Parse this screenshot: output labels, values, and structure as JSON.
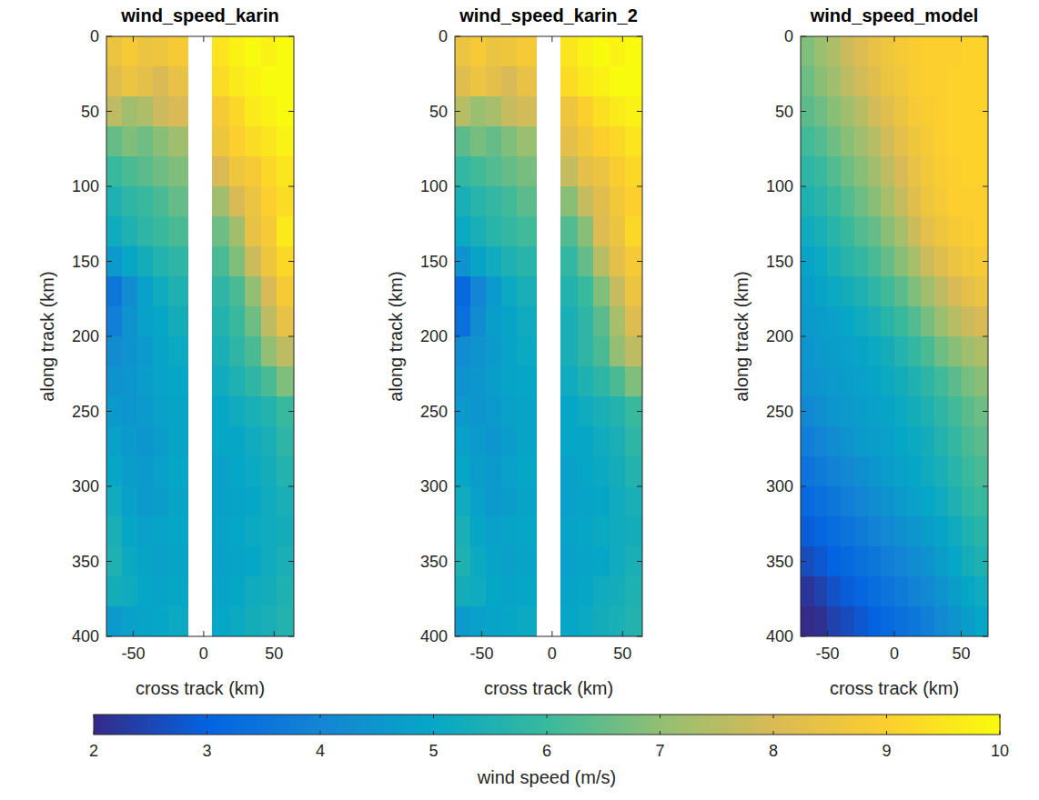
{
  "chart_data": [
    {
      "type": "heatmap",
      "title": "wind_speed_karin",
      "x_label": "cross track (km)",
      "y_label": "along track (km)",
      "xlim": [
        -69,
        64
      ],
      "xticks": [
        -50,
        0,
        50
      ],
      "ylim": [
        400,
        0
      ],
      "yticks": [
        0,
        50,
        100,
        150,
        200,
        250,
        300,
        350,
        400
      ],
      "x_edges": [
        -69,
        -58,
        -47,
        -36,
        -25,
        -11,
        6,
        18,
        29,
        41,
        52,
        64
      ],
      "y_edges": [
        0,
        20,
        40,
        60,
        80,
        100,
        120,
        140,
        160,
        180,
        200,
        220,
        240,
        260,
        280,
        300,
        320,
        340,
        360,
        380,
        400
      ],
      "cells": [
        [
          8.5,
          8.8,
          8.5,
          8.6,
          8.8,
          null,
          9.5,
          9.8,
          10,
          9.8,
          10
        ],
        [
          8.2,
          8.5,
          8.3,
          8.0,
          8.4,
          null,
          9.3,
          9.6,
          9.8,
          10,
          10
        ],
        [
          7.6,
          7.2,
          7.4,
          7.8,
          8.0,
          null,
          8.8,
          9.2,
          9.6,
          9.8,
          10
        ],
        [
          6.5,
          6.8,
          6.6,
          6.9,
          7.2,
          null,
          8.6,
          9.0,
          9.3,
          9.5,
          9.8
        ],
        [
          6.0,
          6.2,
          6.4,
          6.6,
          6.8,
          null,
          8.0,
          8.6,
          8.8,
          9.2,
          9.5
        ],
        [
          5.5,
          5.8,
          6.0,
          6.2,
          6.5,
          null,
          7.2,
          8.0,
          8.5,
          9.0,
          9.3
        ],
        [
          5.2,
          5.5,
          5.8,
          6.0,
          6.2,
          null,
          6.6,
          7.2,
          8.4,
          8.8,
          9.6
        ],
        [
          4.6,
          5.0,
          5.3,
          5.6,
          5.8,
          null,
          6.2,
          6.8,
          7.8,
          8.6,
          9.2
        ],
        [
          3.6,
          4.2,
          4.8,
          5.2,
          5.5,
          null,
          5.8,
          6.2,
          7.0,
          8.0,
          8.8
        ],
        [
          3.8,
          4.4,
          4.8,
          5.0,
          5.3,
          null,
          5.6,
          6.0,
          6.6,
          7.6,
          8.4
        ],
        [
          4.2,
          4.4,
          4.6,
          4.9,
          5.1,
          null,
          5.4,
          5.8,
          6.2,
          7.0,
          7.6
        ],
        [
          4.4,
          4.5,
          4.7,
          4.9,
          5.0,
          null,
          5.2,
          5.5,
          5.8,
          6.2,
          6.8
        ],
        [
          4.6,
          4.5,
          4.6,
          4.8,
          4.9,
          null,
          5.0,
          5.2,
          5.4,
          5.6,
          6.0
        ],
        [
          4.8,
          4.6,
          4.5,
          4.7,
          4.9,
          null,
          5.0,
          5.0,
          5.2,
          5.4,
          5.8
        ],
        [
          5.0,
          4.7,
          4.6,
          4.8,
          5.0,
          null,
          4.8,
          5.0,
          5.1,
          5.3,
          5.6
        ],
        [
          5.2,
          4.8,
          4.6,
          4.7,
          4.9,
          null,
          4.8,
          4.9,
          5.0,
          5.2,
          5.4
        ],
        [
          5.4,
          5.0,
          4.8,
          4.9,
          5.0,
          null,
          4.9,
          5.0,
          5.1,
          5.2,
          5.3
        ],
        [
          5.5,
          5.1,
          4.9,
          4.8,
          4.9,
          null,
          4.8,
          4.9,
          5.0,
          5.2,
          5.4
        ],
        [
          5.3,
          5.2,
          5.0,
          4.9,
          5.0,
          null,
          4.9,
          5.0,
          5.2,
          5.3,
          5.5
        ],
        [
          4.6,
          4.8,
          4.9,
          5.0,
          5.1,
          null,
          5.0,
          5.1,
          5.3,
          5.4,
          5.6
        ]
      ]
    },
    {
      "type": "heatmap",
      "title": "wind_speed_karin_2",
      "x_label": "cross track (km)",
      "y_label": "along track (km)",
      "xlim": [
        -69,
        64
      ],
      "xticks": [
        -50,
        0,
        50
      ],
      "ylim": [
        400,
        0
      ],
      "yticks": [
        0,
        50,
        100,
        150,
        200,
        250,
        300,
        350,
        400
      ],
      "x_edges": [
        -69,
        -58,
        -47,
        -36,
        -25,
        -11,
        6,
        18,
        29,
        41,
        52,
        64
      ],
      "y_edges": [
        0,
        20,
        40,
        60,
        80,
        100,
        120,
        140,
        160,
        180,
        200,
        220,
        240,
        260,
        280,
        300,
        320,
        340,
        360,
        380,
        400
      ],
      "cells": [
        [
          8.5,
          8.8,
          8.5,
          8.6,
          8.8,
          null,
          9.5,
          9.8,
          10,
          9.8,
          10
        ],
        [
          8.2,
          8.5,
          8.3,
          8.0,
          8.4,
          null,
          9.3,
          9.6,
          9.8,
          10,
          10
        ],
        [
          7.5,
          7.1,
          7.3,
          7.7,
          7.9,
          null,
          8.6,
          9.0,
          9.4,
          9.6,
          9.8
        ],
        [
          6.4,
          6.7,
          6.5,
          6.8,
          7.1,
          null,
          8.3,
          8.7,
          9.0,
          9.2,
          9.5
        ],
        [
          5.9,
          6.1,
          6.3,
          6.5,
          6.7,
          null,
          7.7,
          8.3,
          8.5,
          8.9,
          9.2
        ],
        [
          5.4,
          5.7,
          5.9,
          6.1,
          6.4,
          null,
          6.9,
          7.7,
          8.2,
          8.7,
          9.0
        ],
        [
          5.1,
          5.4,
          5.7,
          5.9,
          6.1,
          null,
          6.3,
          6.9,
          8.1,
          8.5,
          9.2
        ],
        [
          4.4,
          4.9,
          5.2,
          5.5,
          5.7,
          null,
          5.9,
          6.5,
          7.5,
          8.3,
          8.8
        ],
        [
          3.2,
          4.0,
          4.6,
          5.1,
          5.4,
          null,
          5.6,
          6.0,
          6.8,
          7.7,
          8.5
        ],
        [
          3.4,
          4.2,
          4.7,
          4.9,
          5.2,
          null,
          5.4,
          5.8,
          6.4,
          7.3,
          8.1
        ],
        [
          4.2,
          4.4,
          4.6,
          4.9,
          5.1,
          null,
          5.4,
          5.8,
          6.2,
          7.0,
          7.6
        ],
        [
          4.4,
          4.5,
          4.7,
          4.9,
          5.0,
          null,
          5.2,
          5.5,
          5.8,
          6.2,
          6.8
        ],
        [
          4.6,
          4.5,
          4.6,
          4.8,
          4.9,
          null,
          5.0,
          5.2,
          5.4,
          5.6,
          6.0
        ],
        [
          4.8,
          4.6,
          4.5,
          4.7,
          4.9,
          null,
          5.0,
          5.0,
          5.2,
          5.4,
          5.8
        ],
        [
          5.0,
          4.7,
          4.6,
          4.8,
          5.0,
          null,
          4.8,
          5.0,
          5.1,
          5.3,
          5.6
        ],
        [
          5.2,
          4.8,
          4.6,
          4.7,
          4.9,
          null,
          4.8,
          4.9,
          5.0,
          5.2,
          5.4
        ],
        [
          5.4,
          5.0,
          4.8,
          4.9,
          5.0,
          null,
          4.9,
          5.0,
          5.1,
          5.2,
          5.3
        ],
        [
          5.5,
          5.1,
          4.9,
          4.8,
          4.9,
          null,
          4.8,
          4.9,
          5.0,
          5.2,
          5.4
        ],
        [
          5.3,
          5.2,
          5.0,
          4.9,
          5.0,
          null,
          4.9,
          5.0,
          5.2,
          5.3,
          5.5
        ],
        [
          4.6,
          4.8,
          4.9,
          5.0,
          5.1,
          null,
          5.0,
          5.1,
          5.3,
          5.4,
          5.6
        ]
      ]
    },
    {
      "type": "heatmap",
      "title": "wind_speed_model",
      "x_label": "cross track (km)",
      "y_label": "along track (km)",
      "xlim": [
        -70,
        70
      ],
      "xticks": [
        -50,
        0,
        50
      ],
      "ylim": [
        400,
        0
      ],
      "yticks": [
        0,
        50,
        100,
        150,
        200,
        250,
        300,
        350,
        400
      ],
      "x_edges": [
        -70,
        -60,
        -50,
        -40,
        -30,
        -20,
        -10,
        0,
        10,
        20,
        30,
        40,
        50,
        60,
        70
      ],
      "y_edges": [
        0,
        20,
        40,
        60,
        80,
        100,
        120,
        140,
        160,
        180,
        200,
        220,
        240,
        260,
        280,
        300,
        320,
        340,
        360,
        380,
        400
      ],
      "cells": [
        [
          6.8,
          7.1,
          7.4,
          7.8,
          8.1,
          8.4,
          8.6,
          8.8,
          8.9,
          9.0,
          9.0,
          9.0,
          9.1,
          9.1
        ],
        [
          6.6,
          6.9,
          7.2,
          7.6,
          7.9,
          8.2,
          8.5,
          8.7,
          8.9,
          9.0,
          9.0,
          9.1,
          9.1,
          9.1
        ],
        [
          6.4,
          6.6,
          6.9,
          7.2,
          7.5,
          7.9,
          8.2,
          8.5,
          8.8,
          8.9,
          9.0,
          9.1,
          9.1,
          9.1
        ],
        [
          6.1,
          6.3,
          6.6,
          6.9,
          7.2,
          7.5,
          7.9,
          8.3,
          8.6,
          8.8,
          9.0,
          9.1,
          9.1,
          9.1
        ],
        [
          5.8,
          6.0,
          6.3,
          6.6,
          6.9,
          7.2,
          7.6,
          8.0,
          8.4,
          8.7,
          8.9,
          9.0,
          9.1,
          9.1
        ],
        [
          5.5,
          5.7,
          6.0,
          6.3,
          6.6,
          6.9,
          7.3,
          7.7,
          8.2,
          8.6,
          8.8,
          9.0,
          9.0,
          9.0
        ],
        [
          5.2,
          5.4,
          5.7,
          6.0,
          6.3,
          6.5,
          6.9,
          7.3,
          7.8,
          8.3,
          8.6,
          8.8,
          8.9,
          9.0
        ],
        [
          4.9,
          5.1,
          5.4,
          5.7,
          5.9,
          6.2,
          6.5,
          6.9,
          7.3,
          7.8,
          8.2,
          8.5,
          8.7,
          8.8
        ],
        [
          4.7,
          4.9,
          5.1,
          5.3,
          5.5,
          5.8,
          6.1,
          6.4,
          6.8,
          7.2,
          7.6,
          8.0,
          8.3,
          8.5
        ],
        [
          4.6,
          4.7,
          4.8,
          5.0,
          5.2,
          5.4,
          5.7,
          6.0,
          6.3,
          6.7,
          7.1,
          7.5,
          7.8,
          8.0
        ],
        [
          4.5,
          4.6,
          4.7,
          4.8,
          4.9,
          5.1,
          5.3,
          5.6,
          5.9,
          6.2,
          6.6,
          6.9,
          7.2,
          7.4
        ],
        [
          4.4,
          4.5,
          4.6,
          4.7,
          4.8,
          4.9,
          5.1,
          5.3,
          5.5,
          5.8,
          6.1,
          6.4,
          6.7,
          6.9
        ],
        [
          4.1,
          4.3,
          4.5,
          4.6,
          4.7,
          4.8,
          4.9,
          5.1,
          5.3,
          5.5,
          5.8,
          6.1,
          6.4,
          6.6
        ],
        [
          3.8,
          4.0,
          4.2,
          4.4,
          4.6,
          4.7,
          4.8,
          5.0,
          5.1,
          5.3,
          5.6,
          5.9,
          6.2,
          6.4
        ],
        [
          3.5,
          3.7,
          3.9,
          4.1,
          4.3,
          4.5,
          4.7,
          4.8,
          5.0,
          5.2,
          5.4,
          5.7,
          6.0,
          6.2
        ],
        [
          3.2,
          3.4,
          3.6,
          3.8,
          4.0,
          4.2,
          4.4,
          4.6,
          4.8,
          5.0,
          5.2,
          5.5,
          5.8,
          6.0
        ],
        [
          2.9,
          3.1,
          3.3,
          3.5,
          3.7,
          3.9,
          4.1,
          4.3,
          4.5,
          4.7,
          4.9,
          5.2,
          5.5,
          5.7
        ],
        [
          2.6,
          2.8,
          3.0,
          3.2,
          3.4,
          3.6,
          3.8,
          4.0,
          4.2,
          4.4,
          4.7,
          5.0,
          5.3,
          5.5
        ],
        [
          2.2,
          2.4,
          2.7,
          2.9,
          3.1,
          3.3,
          3.5,
          3.7,
          3.9,
          4.1,
          4.4,
          4.7,
          5.0,
          5.2
        ],
        [
          2.0,
          2.1,
          2.4,
          2.6,
          2.8,
          3.0,
          3.2,
          3.4,
          3.6,
          3.8,
          4.1,
          4.4,
          4.7,
          5.0
        ]
      ]
    }
  ],
  "colorbar": {
    "label": "wind speed (m/s)",
    "range": [
      2,
      10
    ],
    "ticks": [
      2,
      3,
      4,
      5,
      6,
      7,
      8,
      9,
      10
    ]
  }
}
